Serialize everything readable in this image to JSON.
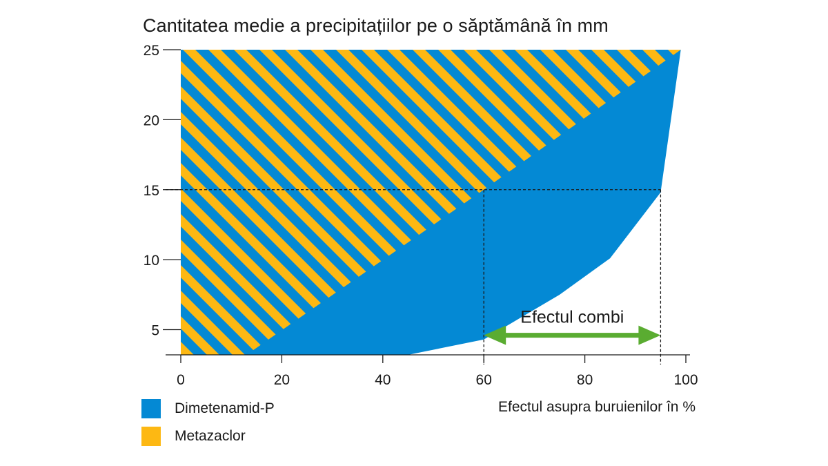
{
  "chart_data": {
    "type": "area",
    "title": "Cantitatea medie a precipitațiilor pe o săptămână în mm",
    "xlabel": "Efectul asupra buruienilor în %",
    "ylabel": "",
    "xlim": [
      0,
      100
    ],
    "ylim": [
      3.2,
      25
    ],
    "x_ticks": [
      0,
      20,
      40,
      60,
      80,
      100
    ],
    "y_ticks": [
      5,
      10,
      15,
      20,
      25
    ],
    "grid": false,
    "legend_position": "bottom-left",
    "series": [
      {
        "name": "Dimetenamid-P",
        "color": "#0489d4",
        "boundary": [
          [
            45,
            3.2
          ],
          [
            60,
            4.3
          ],
          [
            75,
            7.5
          ],
          [
            85,
            10.1
          ],
          [
            95,
            14.8
          ],
          [
            99,
            25
          ]
        ]
      },
      {
        "name": "Metazaclor",
        "color": "#fdb813",
        "pattern": "diagonal-stripes",
        "boundary": [
          [
            13,
            3.2
          ],
          [
            60,
            15
          ],
          [
            99,
            25
          ]
        ]
      }
    ],
    "reference_lines": {
      "y": 15,
      "x": [
        60,
        95
      ]
    },
    "annotation": {
      "text": "Efectul combi",
      "x_from": 60,
      "x_to": 95,
      "y": 4.6,
      "color": "#5aac31"
    }
  }
}
